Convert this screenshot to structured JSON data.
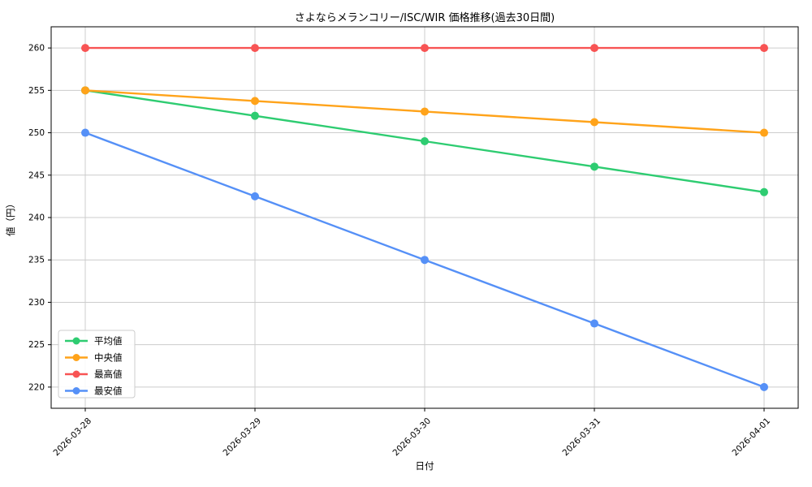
{
  "chart_data": {
    "type": "line",
    "title": "さよならメランコリー/ISC/WIR 価格推移(過去30日間)",
    "xlabel": "日付",
    "ylabel": "値（円）",
    "x": [
      "2026-03-28",
      "2026-03-29",
      "2026-03-30",
      "2026-03-31",
      "2026-04-01"
    ],
    "series": [
      {
        "id": "mean",
        "name": "平均値",
        "color": "#2ecc71",
        "values": [
          255,
          252,
          249,
          246,
          243
        ]
      },
      {
        "id": "median",
        "name": "中央値",
        "color": "#ffa31a",
        "values": [
          255,
          253.75,
          252.5,
          251.25,
          250
        ]
      },
      {
        "id": "max",
        "name": "最高値",
        "color": "#f85454",
        "values": [
          260,
          260,
          260,
          260,
          260
        ]
      },
      {
        "id": "min",
        "name": "最安値",
        "color": "#5590f7",
        "values": [
          250,
          242.5,
          235,
          227.5,
          220
        ]
      }
    ],
    "ylim": [
      217.5,
      262.5
    ],
    "yticks": [
      220,
      225,
      230,
      235,
      240,
      245,
      250,
      255,
      260
    ],
    "grid": true,
    "legend_position": "lower left",
    "colors": {
      "grid": "#cccccc",
      "spine": "#000000",
      "legend_border": "#cccccc",
      "legend_bg": "#ffffff"
    }
  }
}
